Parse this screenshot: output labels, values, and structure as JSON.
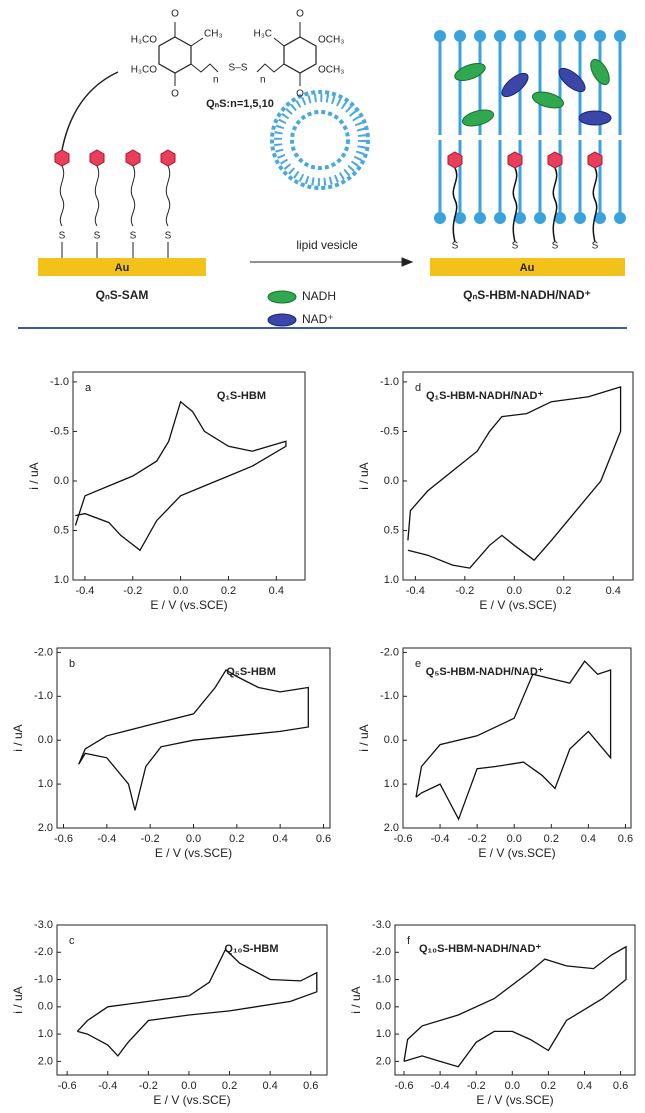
{
  "scheme": {
    "oxo": "O",
    "methoxy": "H₃CO",
    "methyl_left": "CH₃",
    "methyl_right": "H₃C",
    "methoxy_right": "OCH₃",
    "n_label": "n",
    "disulfide": "S–S",
    "formula": "QₙS:n=1,5,10",
    "sulfur": "S",
    "gold": "Au",
    "sam_label": "QₙS-SAM",
    "vesicle_label": "lipid vesicle",
    "nadh": "NADH",
    "nad": "NAD⁺",
    "product_label": "QₙS-HBM-NADH/NAD⁺"
  },
  "chart_data": [
    {
      "type": "line",
      "panel": "a",
      "annotation": "Q₁S-HBM",
      "x_label": "E / V (vs.SCE)",
      "y_label": "i / uA",
      "xlim": [
        -0.45,
        0.52
      ],
      "ylim": [
        1.0,
        -1.1
      ],
      "xticks": [
        -0.4,
        -0.2,
        {
          "value": 0,
          "label": "0.0"
        },
        0.2,
        0.4
      ],
      "yticks": [
        {
          "value": -1,
          "label": "-1.0"
        },
        -0.5,
        {
          "value": 0,
          "label": "0.0"
        },
        0.5,
        {
          "value": 1,
          "label": "1.0"
        }
      ],
      "x": [
        -0.44,
        -0.4,
        -0.3,
        -0.2,
        -0.1,
        -0.05,
        0.0,
        0.05,
        0.1,
        0.2,
        0.3,
        0.44,
        0.44,
        0.3,
        0.2,
        0.1,
        0.0,
        -0.1,
        -0.17,
        -0.25,
        -0.3,
        -0.4,
        -0.44
      ],
      "series": [
        {
          "name": "Q₁S-HBM",
          "color": "#111111",
          "values": [
            0.45,
            0.15,
            0.05,
            -0.05,
            -0.2,
            -0.4,
            -0.8,
            -0.7,
            -0.5,
            -0.35,
            -0.3,
            -0.4,
            -0.35,
            -0.15,
            -0.05,
            0.05,
            0.15,
            0.4,
            0.7,
            0.55,
            0.42,
            0.33,
            0.35
          ]
        }
      ]
    },
    {
      "type": "line",
      "panel": "b",
      "annotation": "Q₅S-HBM",
      "x_label": "E / V (vs.SCE)",
      "y_label": "i / uA",
      "xlim": [
        -0.63,
        0.63
      ],
      "ylim": [
        2.0,
        -2.1
      ],
      "xticks": [
        -0.6,
        -0.4,
        -0.2,
        {
          "value": 0,
          "label": "0.0"
        },
        0.2,
        0.4,
        0.6
      ],
      "yticks": [
        {
          "value": -2,
          "label": "-2.0"
        },
        {
          "value": -1,
          "label": "-1.0"
        },
        {
          "value": 0,
          "label": "0.0"
        },
        {
          "value": 1,
          "label": "1.0"
        },
        {
          "value": 2,
          "label": "2.0"
        }
      ],
      "x": [
        -0.53,
        -0.5,
        -0.4,
        -0.2,
        0.0,
        0.1,
        0.15,
        0.2,
        0.3,
        0.4,
        0.53,
        0.53,
        0.4,
        0.2,
        0.0,
        -0.15,
        -0.22,
        -0.27,
        -0.3,
        -0.4,
        -0.5,
        -0.53
      ],
      "series": [
        {
          "name": "Q₅S-HBM",
          "color": "#111111",
          "values": [
            0.55,
            0.2,
            -0.1,
            -0.35,
            -0.6,
            -1.2,
            -1.6,
            -1.45,
            -1.2,
            -1.1,
            -1.2,
            -0.3,
            -0.2,
            -0.1,
            0.0,
            0.15,
            0.6,
            1.6,
            1.0,
            0.4,
            0.3,
            0.55
          ]
        }
      ]
    },
    {
      "type": "line",
      "panel": "c",
      "annotation": "Q₁₀S-HBM",
      "x_label": "E / V (vs.SCE)",
      "y_label": "i / uA",
      "xlim": [
        -0.65,
        0.68
      ],
      "ylim": [
        2.5,
        -3.0
      ],
      "xticks": [
        -0.6,
        -0.4,
        -0.2,
        {
          "value": 0,
          "label": "0.0"
        },
        0.2,
        0.4,
        0.6
      ],
      "yticks": [
        {
          "value": -3,
          "label": "-3.0"
        },
        {
          "value": -2,
          "label": "-2.0"
        },
        {
          "value": -1,
          "label": "-1.0"
        },
        {
          "value": 0,
          "label": "0.0"
        },
        {
          "value": 1,
          "label": "1.0"
        },
        {
          "value": 2,
          "label": "2.0"
        }
      ],
      "x": [
        -0.55,
        -0.5,
        -0.4,
        -0.2,
        0.0,
        0.1,
        0.18,
        0.25,
        0.4,
        0.55,
        0.63,
        0.63,
        0.5,
        0.2,
        0.0,
        -0.2,
        -0.3,
        -0.35,
        -0.4,
        -0.5,
        -0.55
      ],
      "series": [
        {
          "name": "Q₁₀S-HBM",
          "color": "#111111",
          "values": [
            0.9,
            0.5,
            0.0,
            -0.2,
            -0.4,
            -0.9,
            -2.1,
            -1.6,
            -1.0,
            -0.95,
            -1.25,
            -0.55,
            -0.2,
            0.15,
            0.3,
            0.5,
            1.3,
            1.8,
            1.4,
            1.0,
            0.9
          ]
        }
      ]
    },
    {
      "type": "line",
      "panel": "d",
      "annotation": "Q₁S-HBM-NADH/NAD⁺",
      "x_label": "E / V (vs.SCE)",
      "y_label": "i / uA",
      "xlim": [
        -0.45,
        0.48
      ],
      "ylim": [
        1.0,
        -1.1
      ],
      "xticks": [
        -0.4,
        -0.2,
        {
          "value": 0,
          "label": "0.0"
        },
        0.2,
        0.4
      ],
      "yticks": [
        {
          "value": -1,
          "label": "-1.0"
        },
        -0.5,
        {
          "value": 0,
          "label": "0.0"
        },
        0.5,
        {
          "value": 1,
          "label": "1.0"
        }
      ],
      "x": [
        -0.43,
        -0.42,
        -0.35,
        -0.25,
        -0.15,
        -0.1,
        -0.05,
        0.05,
        0.15,
        0.3,
        0.43,
        0.43,
        0.35,
        0.25,
        0.15,
        0.08,
        0.0,
        -0.05,
        -0.1,
        -0.18,
        -0.25,
        -0.35,
        -0.43
      ],
      "series": [
        {
          "name": "Q₁S-HBM-NADH/NAD⁺",
          "color": "#111111",
          "values": [
            0.6,
            0.3,
            0.1,
            -0.1,
            -0.3,
            -0.5,
            -0.65,
            -0.68,
            -0.8,
            -0.85,
            -0.95,
            -0.5,
            0.0,
            0.3,
            0.6,
            0.8,
            0.65,
            0.55,
            0.65,
            0.88,
            0.85,
            0.75,
            0.7
          ]
        }
      ]
    },
    {
      "type": "line",
      "panel": "e",
      "annotation": "Q₅S-HBM-NADH/NAD⁺",
      "x_label": "E / V (vs.SCE)",
      "y_label": "i / uA",
      "xlim": [
        -0.6,
        0.63
      ],
      "ylim": [
        2.0,
        -2.1
      ],
      "xticks": [
        -0.6,
        -0.4,
        -0.2,
        {
          "value": 0,
          "label": "0.0"
        },
        0.2,
        0.4,
        0.6
      ],
      "yticks": [
        {
          "value": -2,
          "label": "-2.0"
        },
        {
          "value": -1,
          "label": "-1.0"
        },
        {
          "value": 0,
          "label": "0.0"
        },
        {
          "value": 1,
          "label": "1.0"
        },
        {
          "value": 2,
          "label": "2.0"
        }
      ],
      "x": [
        -0.53,
        -0.5,
        -0.4,
        -0.2,
        0.0,
        0.1,
        0.2,
        0.3,
        0.38,
        0.45,
        0.52,
        0.52,
        0.4,
        0.3,
        0.22,
        0.15,
        0.05,
        -0.1,
        -0.2,
        -0.3,
        -0.4,
        -0.5,
        -0.53
      ],
      "series": [
        {
          "name": "Q₅S-HBM-NADH/NAD⁺",
          "color": "#111111",
          "values": [
            1.3,
            0.6,
            0.1,
            -0.1,
            -0.5,
            -1.5,
            -1.4,
            -1.3,
            -1.8,
            -1.5,
            -1.6,
            0.4,
            -0.2,
            0.2,
            1.1,
            0.8,
            0.5,
            0.6,
            0.65,
            1.8,
            1.0,
            1.2,
            1.3
          ]
        }
      ]
    },
    {
      "type": "line",
      "panel": "f",
      "annotation": "Q₁₀S-HBM-NADH/NAD⁺",
      "x_label": "E / V (vs.SCE)",
      "y_label": "i / uA",
      "xlim": [
        -0.65,
        0.68
      ],
      "ylim": [
        2.5,
        -3.0
      ],
      "xticks": [
        -0.6,
        -0.4,
        -0.2,
        {
          "value": 0,
          "label": "0.0"
        },
        0.2,
        0.4,
        0.6
      ],
      "yticks": [
        {
          "value": -3,
          "label": "-3.0"
        },
        {
          "value": -2,
          "label": "-2.0"
        },
        {
          "value": -1,
          "label": "-1.0"
        },
        {
          "value": 0,
          "label": "0.0"
        },
        {
          "value": 1,
          "label": "1.0"
        },
        {
          "value": 2,
          "label": "2.0"
        }
      ],
      "x": [
        -0.6,
        -0.58,
        -0.5,
        -0.3,
        -0.1,
        0.1,
        0.18,
        0.3,
        0.45,
        0.55,
        0.63,
        0.63,
        0.5,
        0.3,
        0.2,
        0.1,
        0.0,
        -0.1,
        -0.2,
        -0.3,
        -0.4,
        -0.5,
        -0.6
      ],
      "series": [
        {
          "name": "Q₁₀S-HBM-NADH/NAD⁺",
          "color": "#111111",
          "values": [
            2.0,
            1.2,
            0.7,
            0.3,
            -0.3,
            -1.3,
            -1.75,
            -1.5,
            -1.4,
            -1.9,
            -2.2,
            -1.0,
            -0.3,
            0.5,
            1.6,
            1.2,
            0.9,
            0.9,
            1.3,
            2.2,
            2.0,
            1.8,
            2.0
          ]
        }
      ]
    }
  ]
}
